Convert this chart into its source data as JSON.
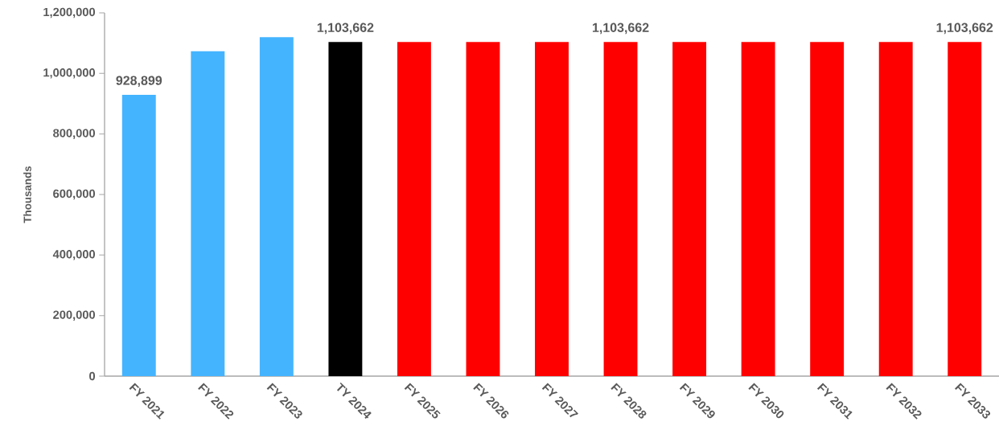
{
  "chart_data": {
    "type": "bar",
    "ylabel": "Thousands",
    "categories": [
      "FY 2021",
      "FY 2022",
      "FY 2023",
      "TY 2024",
      "FY 2025",
      "FY 2026",
      "FY 2027",
      "FY 2028",
      "FY 2029",
      "FY 2030",
      "FY 2031",
      "FY 2032",
      "FY 2033"
    ],
    "values": [
      928899,
      1073000,
      1120000,
      1103662,
      1103662,
      1103662,
      1103662,
      1103662,
      1103662,
      1103662,
      1103662,
      1103662,
      1103662
    ],
    "colors": [
      "#44b4ff",
      "#44b4ff",
      "#44b4ff",
      "#000000",
      "#ff0000",
      "#ff0000",
      "#ff0000",
      "#ff0000",
      "#ff0000",
      "#ff0000",
      "#ff0000",
      "#ff0000",
      "#ff0000"
    ],
    "value_labels": [
      "928,899",
      null,
      null,
      "1,103,662",
      null,
      null,
      null,
      "1,103,662",
      null,
      null,
      null,
      null,
      "1,103,662"
    ],
    "ylim": [
      0,
      1200000
    ],
    "yticks": [
      {
        "value": 0,
        "label": "0"
      },
      {
        "value": 200000,
        "label": "200,000"
      },
      {
        "value": 400000,
        "label": "400,000"
      },
      {
        "value": 600000,
        "label": "600,000"
      },
      {
        "value": 800000,
        "label": "800,000"
      },
      {
        "value": 1000000,
        "label": "1,000,000"
      },
      {
        "value": 1200000,
        "label": "1,200,000"
      }
    ]
  }
}
